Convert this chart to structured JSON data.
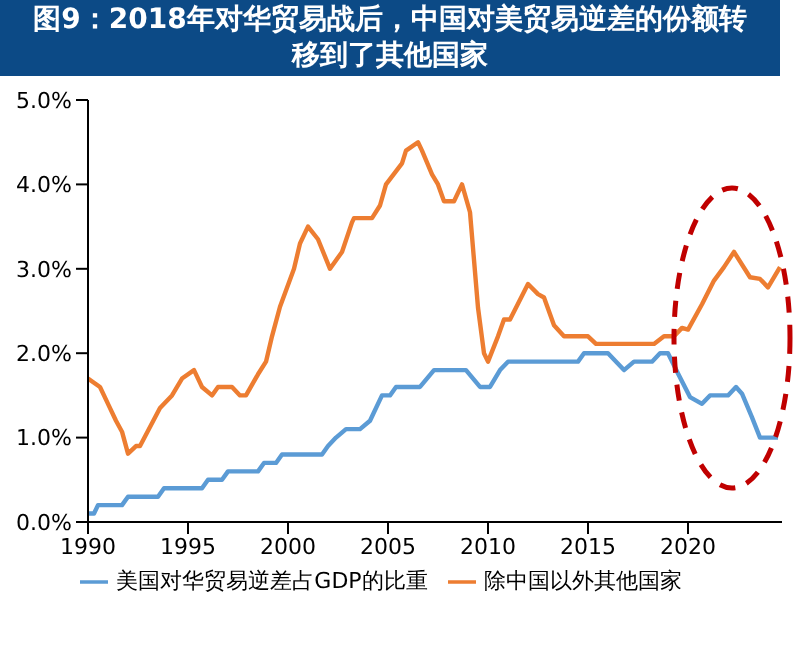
{
  "chart_data": {
    "type": "line",
    "title": "图9：2018年对华贸易战后，中国对美贸易逆差的份额转移到了其他国家",
    "xlim": [
      1990,
      2024.7
    ],
    "xticks": [
      1990,
      1995,
      2000,
      2005,
      2010,
      2015,
      2020
    ],
    "ylim": [
      0,
      5
    ],
    "yticks": [
      {
        "value": 0,
        "label": "0.0%"
      },
      {
        "value": 1,
        "label": "1.0%"
      },
      {
        "value": 2,
        "label": "2.0%"
      },
      {
        "value": 3,
        "label": "3.0%"
      },
      {
        "value": 4,
        "label": "4.0%"
      },
      {
        "value": 5,
        "label": "5.0%"
      }
    ],
    "grid": false,
    "legend": "bottom",
    "marker": "none",
    "line_style": "solid",
    "series": [
      {
        "name": "美国对华贸易逆差占GDP的比重",
        "color": "#5b9bd5",
        "x": [
          1990,
          1990.3,
          1990.5,
          1991.7,
          1992,
          1993.5,
          1993.8,
          1995.7,
          1996,
          1996.7,
          1997,
          1998.5,
          1998.8,
          1999.4,
          1999.7,
          2001.7,
          2002,
          2002.4,
          2002.9,
          2003.6,
          2004.1,
          2004.3,
          2004.7,
          2005.1,
          2005.4,
          2006.1,
          2006.6,
          2007.3,
          2008.9,
          2009.6,
          2010.1,
          2010.6,
          2011,
          2014.5,
          2014.8,
          2016,
          2016.8,
          2017.3,
          2018.2,
          2018.6,
          2019,
          2019.5,
          2020.1,
          2020.7,
          2021.1,
          2022,
          2022.4,
          2022.7,
          2023.2,
          2023.6,
          2024.5
        ],
        "values": [
          0.1,
          0.1,
          0.2,
          0.2,
          0.3,
          0.3,
          0.4,
          0.4,
          0.5,
          0.5,
          0.6,
          0.6,
          0.7,
          0.7,
          0.8,
          0.8,
          0.9,
          1.0,
          1.1,
          1.1,
          1.2,
          1.3,
          1.5,
          1.5,
          1.6,
          1.6,
          1.6,
          1.8,
          1.8,
          1.6,
          1.6,
          1.8,
          1.9,
          1.9,
          2.0,
          2.0,
          1.8,
          1.9,
          1.9,
          2.0,
          2.0,
          1.76,
          1.48,
          1.4,
          1.5,
          1.5,
          1.6,
          1.52,
          1.24,
          1.0,
          1.0
        ]
      },
      {
        "name": "除中国以外其他国家",
        "color": "#ed7d31",
        "x": [
          1990,
          1990.6,
          1991,
          1991.4,
          1991.7,
          1992,
          1992.4,
          1992.6,
          1993.6,
          1994.2,
          1994.7,
          1995.3,
          1995.7,
          1996.2,
          1996.5,
          1997.2,
          1997.6,
          1997.9,
          1998.5,
          1998.9,
          1999.2,
          1999.6,
          2000.3,
          2000.6,
          2001,
          2001.5,
          2002.1,
          2002.7,
          2003.2,
          2003.3,
          2004.2,
          2004.6,
          2004.9,
          2005.7,
          2005.9,
          2006.5,
          2006.7,
          2007.2,
          2007.5,
          2007.8,
          2008.3,
          2008.7,
          2009.1,
          2009.5,
          2009.8,
          2010,
          2010.5,
          2010.8,
          2011.1,
          2012,
          2012.5,
          2012.8,
          2013.3,
          2013.8,
          2014.1,
          2015,
          2015.4,
          2018.3,
          2018.8,
          2019.3,
          2019.7,
          2020,
          2020.7,
          2021.3,
          2021.8,
          2022.3,
          2023.1,
          2023.6,
          2024,
          2024.6
        ],
        "values": [
          1.7,
          1.6,
          1.4,
          1.2,
          1.07,
          0.81,
          0.9,
          0.9,
          1.35,
          1.5,
          1.7,
          1.8,
          1.6,
          1.5,
          1.6,
          1.6,
          1.5,
          1.5,
          1.75,
          1.9,
          2.2,
          2.55,
          3.0,
          3.3,
          3.5,
          3.35,
          3.0,
          3.2,
          3.55,
          3.6,
          3.6,
          3.75,
          4.0,
          4.25,
          4.4,
          4.5,
          4.4,
          4.12,
          4.0,
          3.8,
          3.8,
          4.0,
          3.67,
          2.54,
          2.0,
          1.9,
          2.2,
          2.4,
          2.4,
          2.82,
          2.7,
          2.66,
          2.33,
          2.2,
          2.2,
          2.2,
          2.11,
          2.11,
          2.2,
          2.2,
          2.3,
          2.28,
          2.58,
          2.86,
          3.02,
          3.2,
          2.9,
          2.88,
          2.78,
          3.02
        ]
      }
    ]
  }
}
